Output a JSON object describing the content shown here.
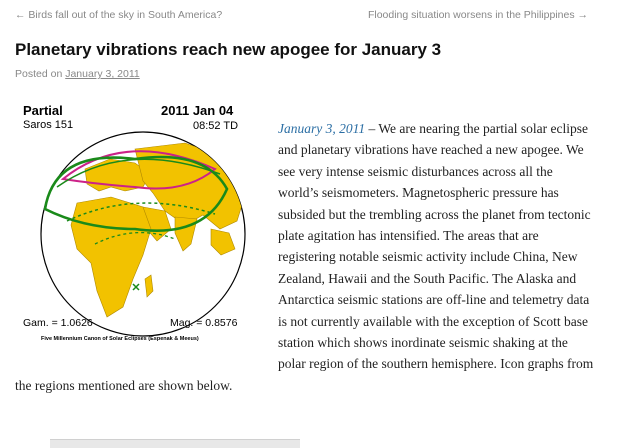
{
  "nav": {
    "prev": "← Birds fall out of the sky in South America?",
    "next": "Flooding situation worsens in the Philippines →"
  },
  "post": {
    "title": "Planetary vibrations reach new apogee for January 3",
    "posted_on": "Posted on",
    "date": "January 3, 2011"
  },
  "figure": {
    "type": "Partial",
    "saros": "Saros 151",
    "date": "2011 Jan 04",
    "time": "08:52 TD",
    "gamma": "Gam. = 1.0626",
    "magnitude": "Mag. = 0.8576",
    "caption": "Five Millennium Canon of Solar Eclipses (Espenak & Meeus)",
    "colors": {
      "land": "#f2c200",
      "ocean": "#ffffff",
      "track": "#1a8a1a",
      "limit": "#cc2288"
    }
  },
  "article": {
    "dateline": "January 3, 2011",
    "body": " – We are nearing the partial solar eclipse and planetary vibrations have reached a new apogee. We see very intense seismic disturbances across all the world’s seismometers. Magnetospheric pressure has subsided but the trembling across the planet from tectonic plate agitation has intensified. The areas that are registering notable seismic activity include China, New Zealand, Hawaii and the South Pacific. The Alaska and Antarctica seismic stations are off-line and telemetry data is not currently available with the exception of Scott base station which shows inordinate seismic shaking at the polar region of the southern hemisphere. Icon graphs from the regions mentioned are shown below."
  }
}
